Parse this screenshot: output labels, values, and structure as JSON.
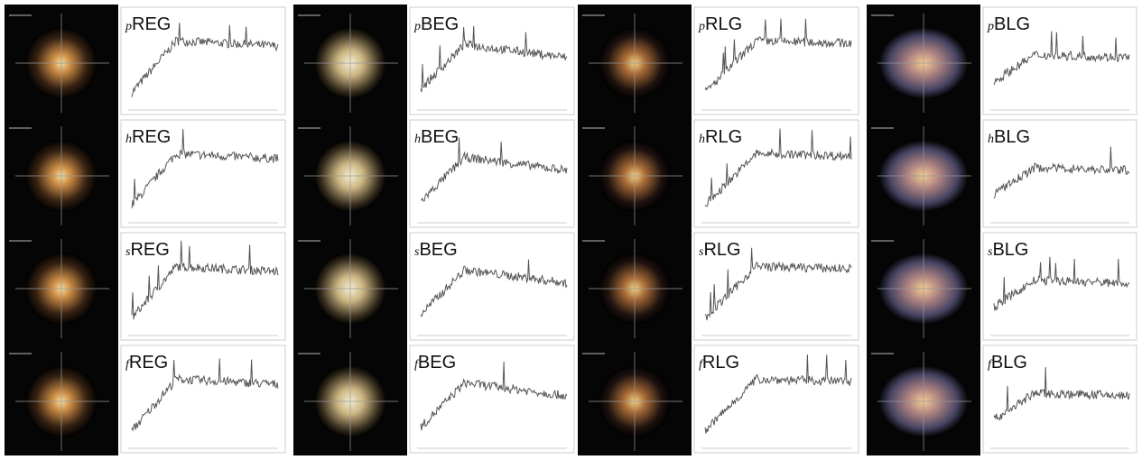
{
  "panels": [
    [
      {
        "prefix": "p",
        "name": "REG"
      },
      {
        "prefix": "h",
        "name": "REG"
      },
      {
        "prefix": "s",
        "name": "REG"
      },
      {
        "prefix": "f",
        "name": "REG"
      }
    ],
    [
      {
        "prefix": "p",
        "name": "BEG"
      },
      {
        "prefix": "h",
        "name": "BEG"
      },
      {
        "prefix": "s",
        "name": "BEG"
      },
      {
        "prefix": "f",
        "name": "BEG"
      }
    ],
    [
      {
        "prefix": "p",
        "name": "RLG"
      },
      {
        "prefix": "h",
        "name": "RLG"
      },
      {
        "prefix": "s",
        "name": "RLG"
      },
      {
        "prefix": "f",
        "name": "RLG"
      }
    ],
    [
      {
        "prefix": "p",
        "name": "BLG"
      },
      {
        "prefix": "h",
        "name": "BLG"
      },
      {
        "prefix": "s",
        "name": "BLG"
      },
      {
        "prefix": "f",
        "name": "BLG"
      }
    ]
  ]
}
